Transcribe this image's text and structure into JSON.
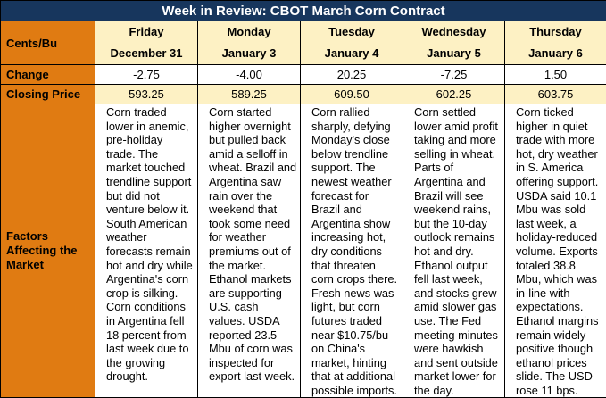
{
  "title": "Week in Review: CBOT March Corn Contract",
  "row_labels": {
    "unit": "Cents/Bu",
    "change": "Change",
    "closing": "Closing Price",
    "factors": "Factors Affecting the Market"
  },
  "days": [
    {
      "weekday": "Friday",
      "date": "December 31",
      "change": "-2.75",
      "closing": "593.25",
      "factors": "Corn traded lower in anemic, pre-holiday trade. The market touched trendline support but did not venture below it. South American weather forecasts remain hot and dry while Argentina's corn crop is silking. Corn conditions in Argentina fell 18 percent from last week due to the growing drought."
    },
    {
      "weekday": "Monday",
      "date": "January 3",
      "change": "-4.00",
      "closing": "589.25",
      "factors": "Corn started higher overnight but pulled back amid a selloff in wheat. Brazil and Argentina saw rain over the weekend that took some need for weather premiums out of the market. Ethanol markets are supporting U.S. cash values. USDA reported 23.5 Mbu of corn was inspected for export last week."
    },
    {
      "weekday": "Tuesday",
      "date": "January 4",
      "change": "20.25",
      "closing": "609.50",
      "factors": "Corn rallied sharply, defying Monday's close below trendline support. The newest weather forecast for Brazil and Argentina show increasing hot, dry conditions that threaten corn crops there. Fresh news was light, but corn futures traded near $10.75/bu on China's market, hinting that at additional possible imports."
    },
    {
      "weekday": "Wednesday",
      "date": "January 5",
      "change": "-7.25",
      "closing": "602.25",
      "factors": "Corn settled lower amid profit taking and more selling in wheat. Parts of Argentina and Brazil will see weekend rains, but the 10-day outlook remains hot and dry. Ethanol output fell last week, and stocks grew amid slower gas use. The Fed meeting minutes were hawkish and sent outside market lower for the day."
    },
    {
      "weekday": "Thursday",
      "date": "January 6",
      "change": "1.50",
      "closing": "603.75",
      "factors": "Corn ticked higher in quiet trade with more hot, dry weather in S. America offering support. USDA said 10.1 Mbu was sold last week, a holiday-reduced volume. Exports totaled 38.8 Mbu, which was in-line with expectations. Ethanol margins remain widely positive though ethanol prices slide. The USD rose 11 bps."
    }
  ],
  "colors": {
    "title_bg": "#17365d",
    "row_header_bg": "#e07b12",
    "day_header_bg": "#fdf1c4"
  }
}
